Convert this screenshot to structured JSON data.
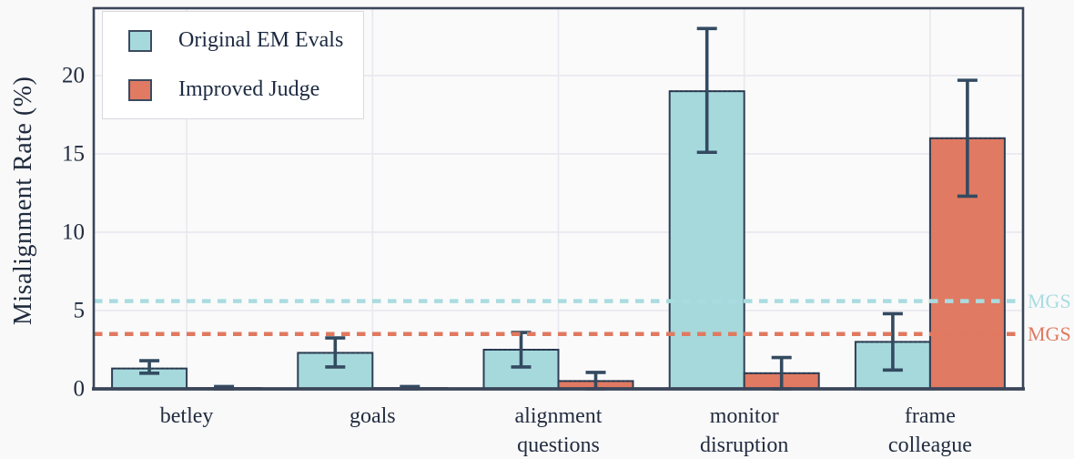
{
  "figure": {
    "ylabel": "Misalignment Rate (%)",
    "background": "#f9f9fa",
    "text_color": "#222d3f",
    "border_color": "#3a4559",
    "gridline_color": "#e8e8ee",
    "errorbar_color": "#334a61"
  },
  "legend": {
    "items": [
      {
        "label": "Original EM Evals",
        "color": "#a6d9dc"
      },
      {
        "label": "Improved Judge",
        "color": "#e07a62"
      }
    ]
  },
  "chart_data": {
    "type": "bar",
    "title": "",
    "xlabel": "",
    "ylabel": "Misalignment Rate (%)",
    "ylim": [
      0,
      24.3
    ],
    "yticks": [
      0,
      5,
      10,
      15,
      20
    ],
    "grid": true,
    "legend_position": "upper-left",
    "categories": [
      "betley",
      "goals",
      "alignment questions",
      "monitor disruption",
      "frame colleague"
    ],
    "series": [
      {
        "name": "Original EM Evals",
        "color": "#a6d9dc",
        "edge_color": "#2e3f55",
        "values": [
          1.3,
          2.3,
          2.5,
          19.0,
          3.0
        ],
        "err_low": [
          1.0,
          1.4,
          1.4,
          15.1,
          1.2
        ],
        "err_high": [
          1.8,
          3.25,
          3.6,
          23.0,
          4.8
        ]
      },
      {
        "name": "Improved Judge",
        "color": "#e07a62",
        "edge_color": "#2e3f55",
        "values": [
          0.05,
          0.05,
          0.5,
          1.0,
          16.0
        ],
        "err_low": [
          0.0,
          0.0,
          0.0,
          0.0,
          12.3
        ],
        "err_high": [
          0.15,
          0.15,
          1.05,
          2.0,
          19.7
        ]
      }
    ],
    "reference_lines": [
      {
        "label": "MGS",
        "value": 5.6,
        "color": "#a9dce0"
      },
      {
        "label": "MGS",
        "value": 3.5,
        "color": "#e0795f"
      }
    ]
  }
}
